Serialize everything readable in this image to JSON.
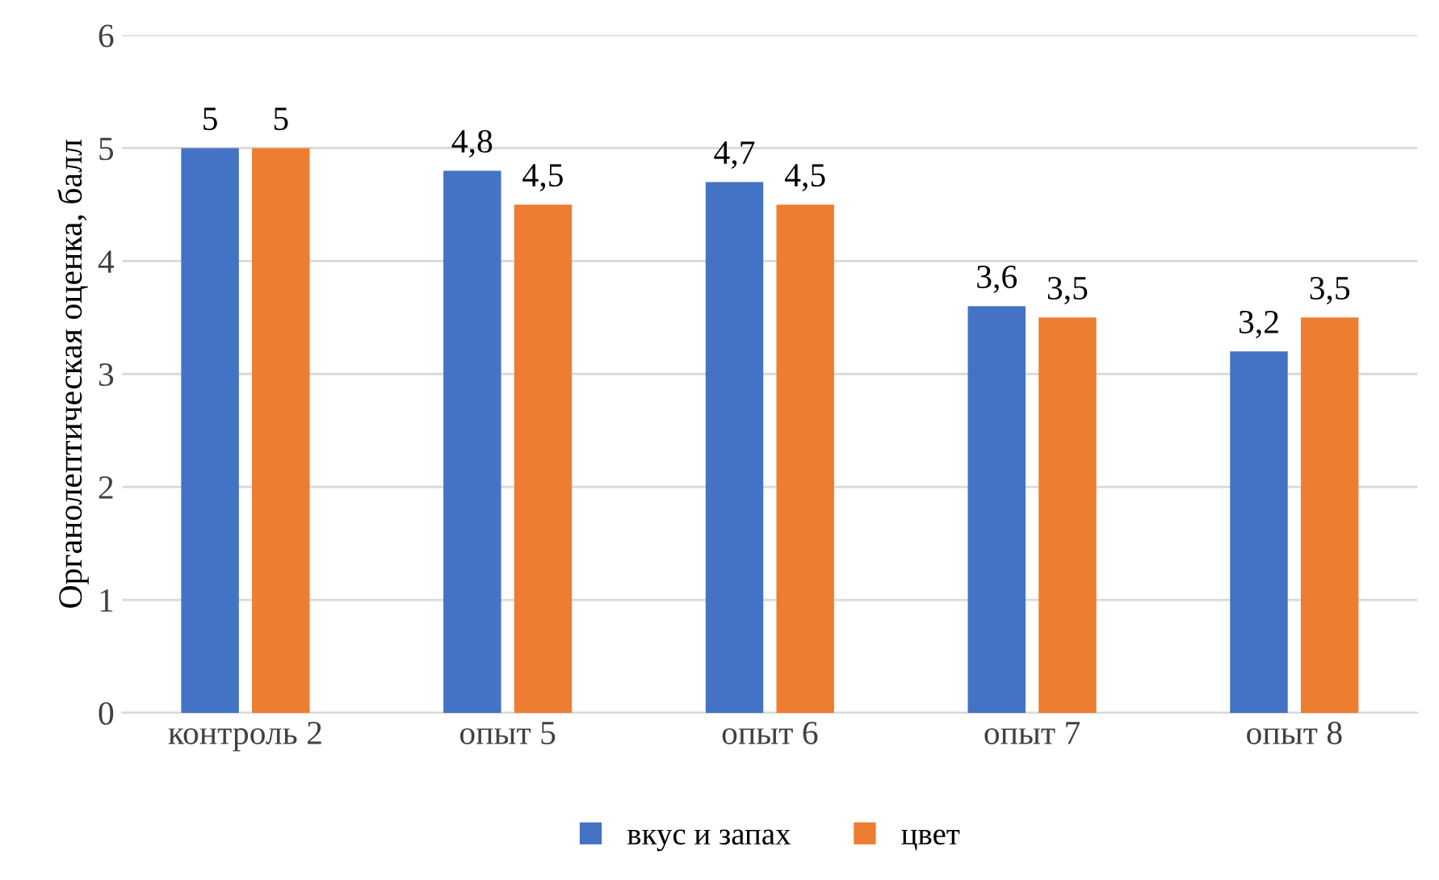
{
  "chart_data": {
    "type": "bar",
    "ylabel": "Органолептическая оценка, балл",
    "categories": [
      "контроль 2",
      "опыт 5",
      "опыт 6",
      "опыт 7",
      "опыт 8"
    ],
    "series": [
      {
        "name": "вкус и запах",
        "color": "#4472c4",
        "values": [
          5,
          4.8,
          4.7,
          3.6,
          3.2
        ],
        "value_labels": [
          "5",
          "4,8",
          "4,7",
          "3,6",
          "3,2"
        ]
      },
      {
        "name": "цвет",
        "color": "#ed7d31",
        "values": [
          5,
          4.5,
          4.5,
          3.5,
          3.5
        ],
        "value_labels": [
          "5",
          "4,5",
          "4,5",
          "3,5",
          "3,5"
        ]
      }
    ],
    "ylim": [
      0,
      6
    ],
    "yticks": [
      0,
      1,
      2,
      3,
      4,
      5,
      6
    ],
    "grid": "y",
    "legend": "bottom"
  }
}
